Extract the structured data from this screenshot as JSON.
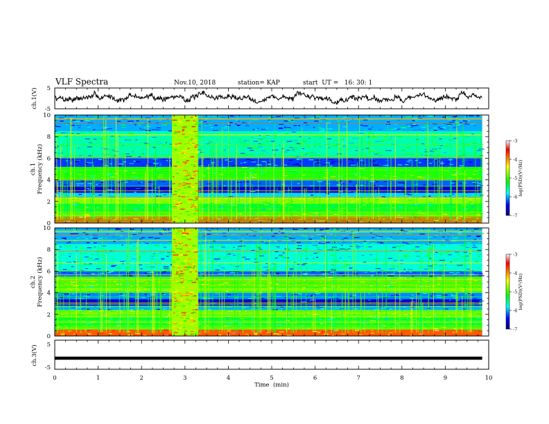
{
  "header": {
    "title": "VLF Spectra",
    "date": "Nov.10, 2018",
    "station": "station= KAP",
    "start_ut": "start  UT =   16: 30: 1"
  },
  "colorbar": {
    "label": "log(PSD)(V²/Hz)",
    "ticks": [
      "-3",
      "-4",
      "-5",
      "-6",
      "-7"
    ],
    "colors": [
      "#ffffff",
      "#ff0000",
      "#ffff00",
      "#00ff00",
      "#00ffff",
      "#0000ff",
      "#000070"
    ]
  },
  "axes": {
    "xlabel": "Time  (min)",
    "xticks": [
      "0",
      "1",
      "2",
      "3",
      "4",
      "5",
      "6",
      "7",
      "8",
      "9",
      "10"
    ],
    "ch1_v_label": "ch.1(V)",
    "ch1_v_ticks": [
      "5",
      "-5"
    ],
    "spec1_label": "ch.1\nFrequency (kHz)",
    "spec2_label": "ch.2\nFrequency (kHz)",
    "freq_ticks": [
      "0",
      "2",
      "4",
      "6",
      "8",
      "10"
    ],
    "ch3_v_label": "ch.3(V)",
    "ch3_v_ticks": [
      "5",
      "-5"
    ]
  },
  "chart_data": [
    {
      "type": "line",
      "panel": "ch1_voltage",
      "ylabel": "ch.1(V)",
      "xlabel": "Time  (min)",
      "xlim": [
        0,
        10
      ],
      "ylim": [
        -5,
        5
      ],
      "data_x_range": [
        0,
        9.85
      ],
      "mean": 0.5,
      "amplitude_range": [
        -2.8,
        3.5
      ]
    },
    {
      "type": "heatmap",
      "panel": "ch1_spectrogram",
      "ylabel": "Frequency (kHz)",
      "xlim": [
        0,
        10
      ],
      "ylim": [
        0,
        10
      ],
      "zlabel": "log(PSD)(V²/Hz)",
      "zlim": [
        -7,
        -3
      ],
      "broadband_interval_min": [
        2.7,
        3.3
      ],
      "bands_khz": [
        {
          "f": [
            0.0,
            0.6
          ],
          "z": -3.8
        },
        {
          "f": [
            0.6,
            1.0
          ],
          "z": -5.0
        },
        {
          "f": [
            1.0,
            1.8
          ],
          "z": -5.3
        },
        {
          "f": [
            1.8,
            2.4
          ],
          "z": -4.8
        },
        {
          "f": [
            2.4,
            2.8
          ],
          "z": -5.9
        },
        {
          "f": [
            2.8,
            3.4
          ],
          "z": -6.6
        },
        {
          "f": [
            3.4,
            4.0
          ],
          "z": -6.2
        },
        {
          "f": [
            4.0,
            5.2
          ],
          "z": -5.1
        },
        {
          "f": [
            5.2,
            6.0
          ],
          "z": -6.3
        },
        {
          "f": [
            6.0,
            8.5
          ],
          "z": -5.6
        },
        {
          "f": [
            8.5,
            10.0
          ],
          "z": -6.0
        }
      ]
    },
    {
      "type": "heatmap",
      "panel": "ch2_spectrogram",
      "ylabel": "Frequency (kHz)",
      "xlim": [
        0,
        10
      ],
      "ylim": [
        0,
        10
      ],
      "zlabel": "log(PSD)(V²/Hz)",
      "zlim": [
        -7,
        -3
      ],
      "broadband_interval_min": [
        2.7,
        3.3
      ],
      "bands_khz": [
        {
          "f": [
            0.0,
            0.6
          ],
          "z": -3.8
        },
        {
          "f": [
            0.6,
            1.0
          ],
          "z": -5.0
        },
        {
          "f": [
            1.0,
            1.8
          ],
          "z": -5.3
        },
        {
          "f": [
            1.8,
            2.4
          ],
          "z": -4.9
        },
        {
          "f": [
            2.4,
            2.8
          ],
          "z": -6.0
        },
        {
          "f": [
            2.8,
            3.4
          ],
          "z": -6.6
        },
        {
          "f": [
            3.4,
            4.0
          ],
          "z": -6.1
        },
        {
          "f": [
            4.0,
            5.5
          ],
          "z": -5.0
        },
        {
          "f": [
            5.5,
            6.0
          ],
          "z": -6.2
        },
        {
          "f": [
            6.0,
            8.5
          ],
          "z": -5.7
        },
        {
          "f": [
            8.5,
            10.0
          ],
          "z": -6.0
        }
      ]
    },
    {
      "type": "line",
      "panel": "ch3_voltage",
      "ylabel": "ch.3(V)",
      "xlim": [
        0,
        10
      ],
      "ylim": [
        -5,
        5
      ],
      "x": [
        0,
        9.85
      ],
      "y": [
        -1.2,
        -1.2
      ]
    }
  ]
}
